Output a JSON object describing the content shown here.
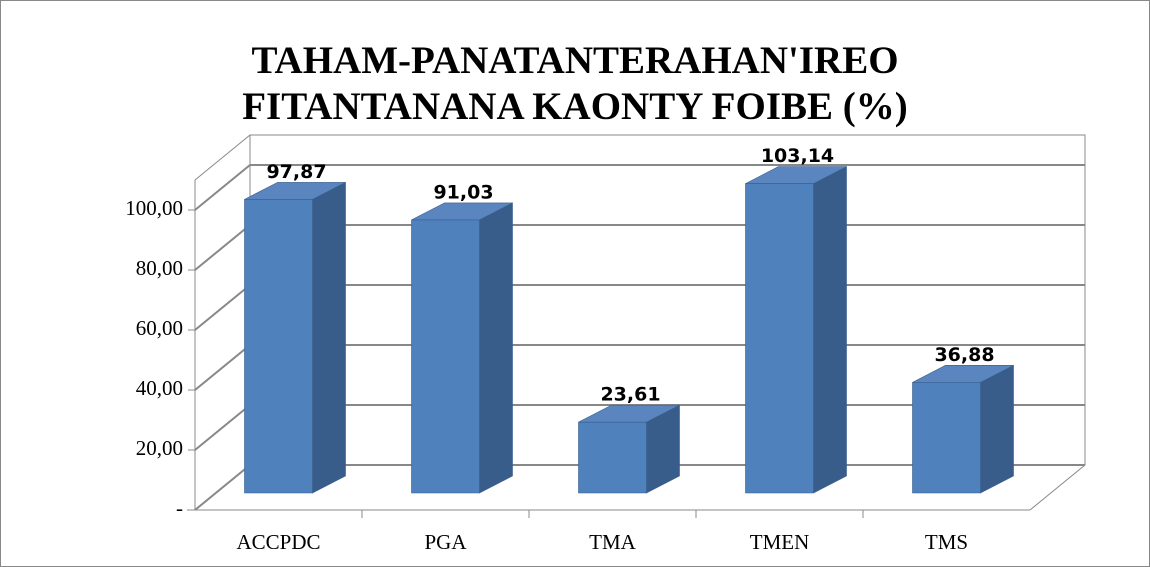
{
  "chart_data": {
    "type": "bar3d",
    "title": "TAHAM-PANATANTERAHAN'IREO FITANTANANA KAONTY FOIBE (%)",
    "categories": [
      "ACCPDC",
      "PGA",
      "TMA",
      "TMEN",
      "TMS"
    ],
    "values": [
      97.87,
      91.03,
      23.61,
      103.14,
      36.88
    ],
    "value_labels": [
      "97,87",
      "91,03",
      "23,61",
      "103,14",
      "36,88"
    ],
    "color": "#4f81bd",
    "ylim": [
      0,
      110
    ],
    "yticks": [
      {
        "value": 0,
        "label": "-"
      },
      {
        "value": 20,
        "label": "20,00"
      },
      {
        "value": 40,
        "label": "40,00"
      },
      {
        "value": 60,
        "label": "60,00"
      },
      {
        "value": 80,
        "label": "80,00"
      },
      {
        "value": 100,
        "label": "100,00"
      }
    ],
    "grid": true
  }
}
